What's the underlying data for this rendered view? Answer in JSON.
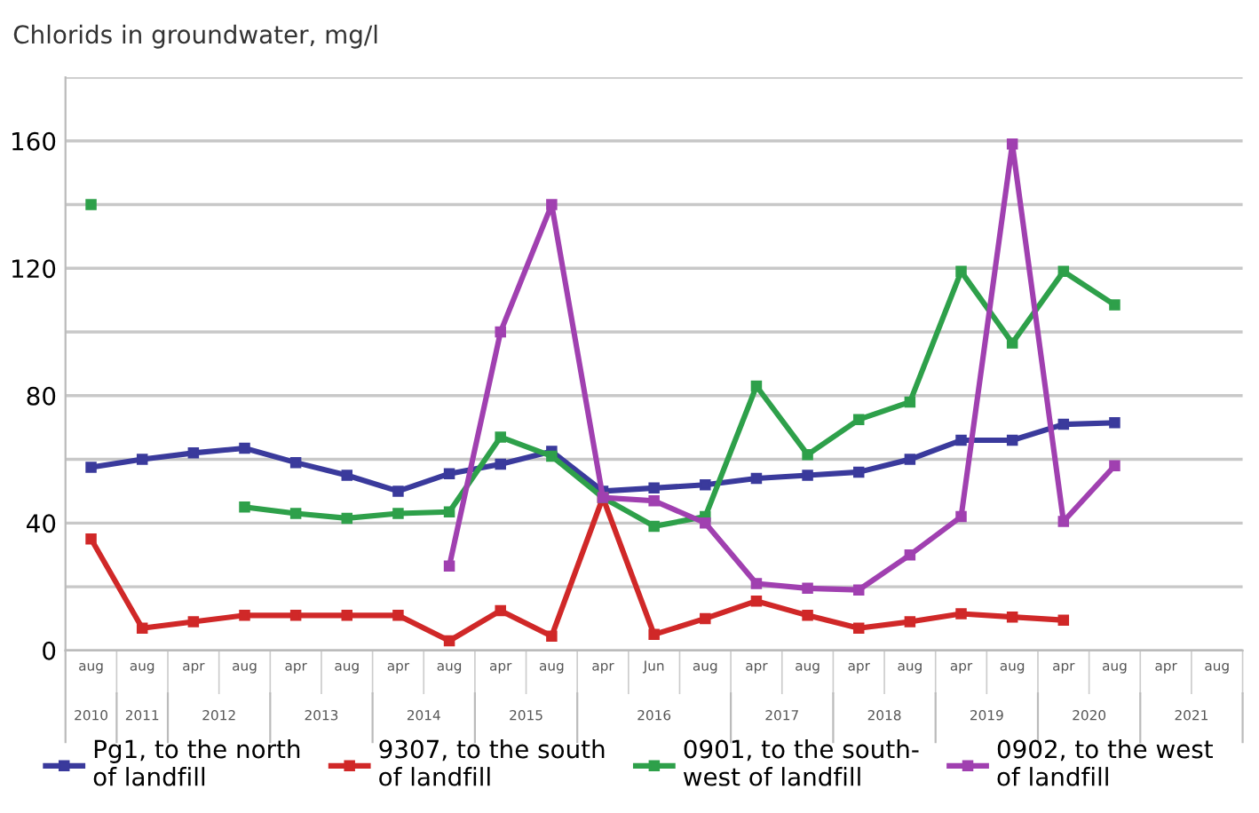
{
  "chart_data": {
    "type": "line",
    "title": "Chlorids in groundwater, mg/l",
    "categories": [
      "aug",
      "aug",
      "apr",
      "aug",
      "apr",
      "aug",
      "apr",
      "aug",
      "apr",
      "aug",
      "apr",
      "Jun",
      "aug",
      "apr",
      "aug",
      "apr",
      "aug",
      "apr",
      "aug",
      "apr",
      "aug",
      "apr",
      "aug"
    ],
    "annotations": [
      "2010",
      "2011",
      "2012",
      "2013",
      "2014",
      "2015",
      "2016",
      "2017",
      "2018",
      "2019",
      "2020",
      "2021"
    ],
    "series": [
      {
        "name": "Pg1, to the north\nof landfill",
        "color": "#3a3a9c",
        "values": [
          57.5,
          60,
          62,
          63.5,
          59,
          55,
          50,
          55.5,
          58.5,
          62.5,
          50,
          51,
          52,
          54,
          55,
          56,
          60,
          66,
          66,
          71,
          71.5,
          null,
          null
        ]
      },
      {
        "name": "9307, to the south\nof landfill",
        "color": "#d02828",
        "values": [
          35,
          7,
          9,
          11,
          11,
          11,
          11,
          3,
          12.5,
          4.5,
          48,
          5,
          10,
          15.5,
          11,
          7,
          9,
          11.5,
          10.5,
          9.5,
          null,
          null,
          null
        ]
      },
      {
        "name": "0901, to the south-\nwest of landfill",
        "color": "#2ea04a",
        "values": [
          140,
          null,
          null,
          45,
          43,
          41.5,
          43,
          43.5,
          67,
          61,
          48,
          39,
          42,
          83,
          61.5,
          72.5,
          78,
          119,
          96.5,
          119,
          108.5,
          null,
          null
        ]
      },
      {
        "name": "0902, to the west\nof landfill",
        "color": "#a040b0",
        "values": [
          null,
          null,
          null,
          null,
          null,
          null,
          null,
          26.5,
          100,
          140,
          48,
          47,
          40,
          21,
          19.5,
          19,
          30,
          42,
          159,
          40.5,
          58,
          null,
          null
        ]
      }
    ],
    "ylim": [
      0,
      180
    ],
    "yticks": [
      0,
      {
        "value": 20,
        "label": null
      },
      40,
      {
        "value": 60,
        "label": null
      },
      80,
      {
        "value": 100,
        "label": null
      },
      120,
      {
        "value": 140,
        "label": null
      },
      160,
      {
        "value": 180,
        "label": null
      }
    ],
    "grid": "y",
    "legend": "bottom",
    "marker": "square",
    "line_style": "solid"
  }
}
